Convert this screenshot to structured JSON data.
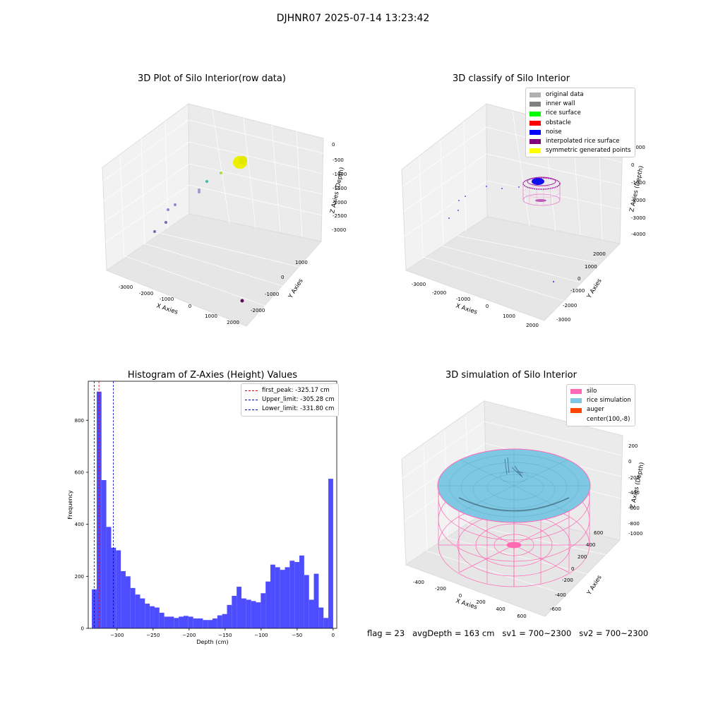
{
  "suptitle": "DJHNR07 2025-07-14 13:23:42",
  "footer": "flag = 23   avgDepth = 163 cm   sv1 = 700~2300   sv2 = 700~2300",
  "colors": {
    "hist_bar": "#4d4dff",
    "first_peak": "#e00000",
    "limits": "#0000bb",
    "silo": "#ff69b4",
    "rice": "#7ec8e3",
    "auger": "#ff4500"
  },
  "panels": {
    "tl": {
      "title": "3D Plot of Silo Interior(row data)",
      "xlabel": "X Axies",
      "ylabel": "Y Axies",
      "zlabel": "Z Axies (Depth)",
      "xticks": [
        "-3000",
        "-2000",
        "-1000",
        "0",
        "1000",
        "2000"
      ],
      "yticks": [
        "-2000",
        "-1000",
        "0",
        "1000"
      ],
      "zticks": [
        "0",
        "-500",
        "-1000",
        "-1500",
        "-2000",
        "-2500",
        "-3000"
      ]
    },
    "tr": {
      "title": "3D classify of Silo Interior",
      "xlabel": "X Axies",
      "ylabel": "Y Axies",
      "zlabel": "Z Axies (Depth)",
      "xticks": [
        "-3000",
        "-2000",
        "-1000",
        "0",
        "1000",
        "2000"
      ],
      "yticks": [
        "-3000",
        "-2000",
        "-1000",
        "0",
        "1000",
        "2000"
      ],
      "zticks": [
        "1000",
        "0",
        "-1000",
        "-2000",
        "-3000",
        "-4000"
      ],
      "legend": [
        {
          "label": "original data",
          "color": "#b0b0b0"
        },
        {
          "label": "inner wall",
          "color": "#808080"
        },
        {
          "label": "rice surface",
          "color": "#00ff00"
        },
        {
          "label": "obstacle",
          "color": "#ff0000"
        },
        {
          "label": "noise",
          "color": "#0000ff"
        },
        {
          "label": "interpolated rice surface",
          "color": "#800080"
        },
        {
          "label": "symmetric generated points",
          "color": "#ffff00"
        }
      ]
    },
    "bl": {
      "title": "Histogram of Z-Axies (Height) Values",
      "legend": [
        {
          "label": "first_peak: -325.17 cm",
          "color": "#e00000"
        },
        {
          "label": "Upper_limit: -305.28 cm",
          "color": "#0000bb"
        },
        {
          "label": "Lower_limit: -331.80 cm",
          "color": "#0000bb"
        }
      ]
    },
    "br": {
      "title": "3D simulation of Silo Interior",
      "xlabel": "X Axies",
      "ylabel": "Y Axies",
      "zlabel": "Z Axies (Depth)",
      "xticks": [
        "-400",
        "-200",
        "0",
        "200",
        "400",
        "600"
      ],
      "yticks": [
        "-600",
        "-400",
        "-200",
        "0",
        "200",
        "400",
        "600"
      ],
      "zticks": [
        "200",
        "0",
        "-200",
        "-400",
        "-600",
        "-800",
        "-1000"
      ],
      "legend": [
        {
          "label": "silo",
          "color": "#ff69b4"
        },
        {
          "label": "rice simulation",
          "color": "#7ec8e3"
        },
        {
          "label": "auger",
          "color": "#ff4500"
        },
        {
          "label": "center(100,-8)",
          "color": "transparent"
        }
      ]
    }
  },
  "chart_data": {
    "type": "bar",
    "title": "Histogram of Z-Axies (Height) Values",
    "xlabel": "Depth (cm)",
    "ylabel": "Frequency",
    "xlim": [
      -340,
      5
    ],
    "ylim": [
      0,
      950
    ],
    "xticks": [
      -300,
      -250,
      -200,
      -150,
      -100,
      -50,
      0
    ],
    "yticks": [
      0,
      200,
      400,
      600,
      800
    ],
    "bin_start": -335,
    "bin_width": 6.7,
    "values": [
      150,
      910,
      570,
      390,
      310,
      300,
      220,
      200,
      155,
      130,
      115,
      95,
      85,
      80,
      60,
      45,
      45,
      40,
      45,
      48,
      45,
      38,
      38,
      32,
      32,
      38,
      50,
      55,
      90,
      125,
      160,
      115,
      110,
      105,
      100,
      135,
      180,
      245,
      235,
      225,
      235,
      260,
      255,
      280,
      205,
      110,
      210,
      80,
      40,
      575
    ],
    "vlines": [
      {
        "name": "first_peak",
        "value": -325.17
      },
      {
        "name": "Upper_limit",
        "value": -305.28
      },
      {
        "name": "Lower_limit",
        "value": -331.8
      }
    ]
  }
}
